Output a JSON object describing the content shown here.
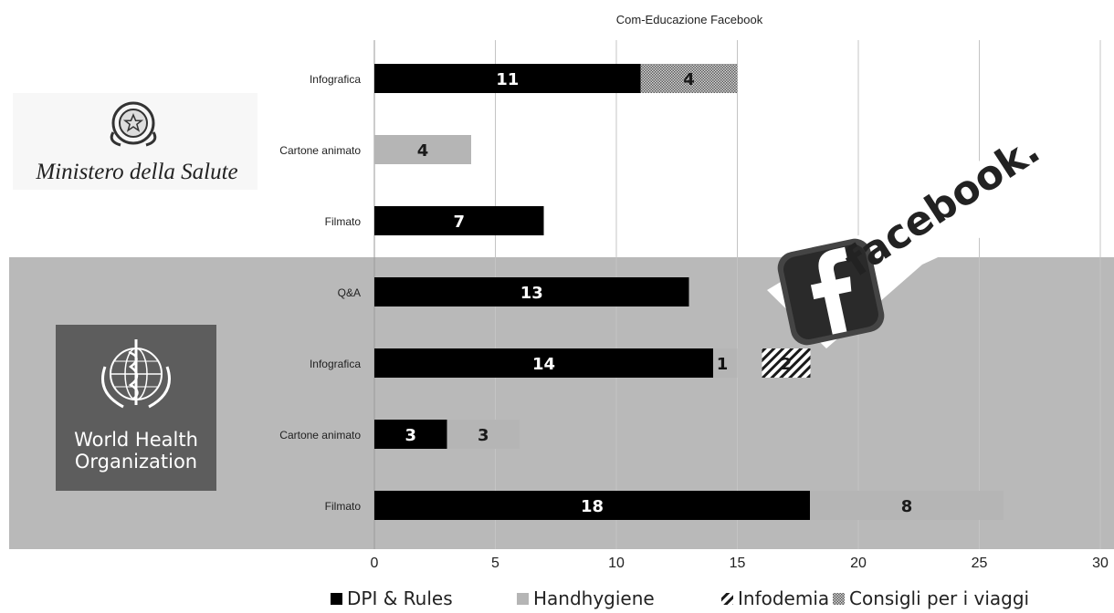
{
  "chart_data": {
    "type": "bar",
    "orientation": "horizontal",
    "stacked": true,
    "title": "Com-Educazione Facebook",
    "xlim": [
      0,
      30
    ],
    "x_ticks": [
      0,
      5,
      10,
      15,
      20,
      25,
      30
    ],
    "grid": true,
    "legend_position": "bottom",
    "series_colors": [
      "#000000",
      "#b5b5b5",
      "#ffffff",
      "#8a8a8a"
    ],
    "series": [
      {
        "name": "DPI & Rules",
        "pattern": "solid"
      },
      {
        "name": "Handhygiene",
        "pattern": "solid"
      },
      {
        "name": "Infodemia",
        "pattern": "diagonal-hatch"
      },
      {
        "name": "Consigli per i viaggi",
        "pattern": "dotted-fill"
      }
    ],
    "groups": [
      {
        "source": "Ministero della Salute",
        "background": "#ffffff",
        "categories": [
          {
            "label": "Infografica",
            "values": [
              11,
              0,
              0,
              4
            ],
            "labels": [
              "11",
              "",
              "",
              "4"
            ]
          },
          {
            "label": "Cartone animato",
            "values": [
              0,
              4,
              0,
              0
            ],
            "labels": [
              "",
              "4",
              "",
              ""
            ]
          },
          {
            "label": "Filmato",
            "values": [
              7,
              0,
              0,
              0
            ],
            "labels": [
              "7",
              "",
              "",
              ""
            ]
          }
        ]
      },
      {
        "source": "World Health Organization",
        "background": "#b9b9b9",
        "categories": [
          {
            "label": "Q&A",
            "values": [
              13,
              0,
              0,
              0
            ],
            "labels": [
              "13",
              "",
              "",
              ""
            ]
          },
          {
            "label": "Infografica",
            "values": [
              14,
              1,
              2,
              0
            ],
            "labels": [
              "14",
              "1",
              "2",
              ""
            ]
          },
          {
            "label": "Cartone animato",
            "values": [
              3,
              3,
              0,
              0
            ],
            "labels": [
              "3",
              "3",
              "",
              ""
            ]
          },
          {
            "label": "Filmato",
            "values": [
              18,
              8,
              0,
              0
            ],
            "labels": [
              "18",
              "8",
              "",
              ""
            ]
          }
        ]
      }
    ]
  },
  "logos": {
    "ministero": {
      "text": "Ministero della Salute",
      "icon": "emblem-icon"
    },
    "who": {
      "line1": "World Health",
      "line2": "Organization",
      "icon": "who-emblem-icon"
    },
    "facebook": {
      "text": "facebook.",
      "icon": "facebook-f-icon"
    }
  }
}
